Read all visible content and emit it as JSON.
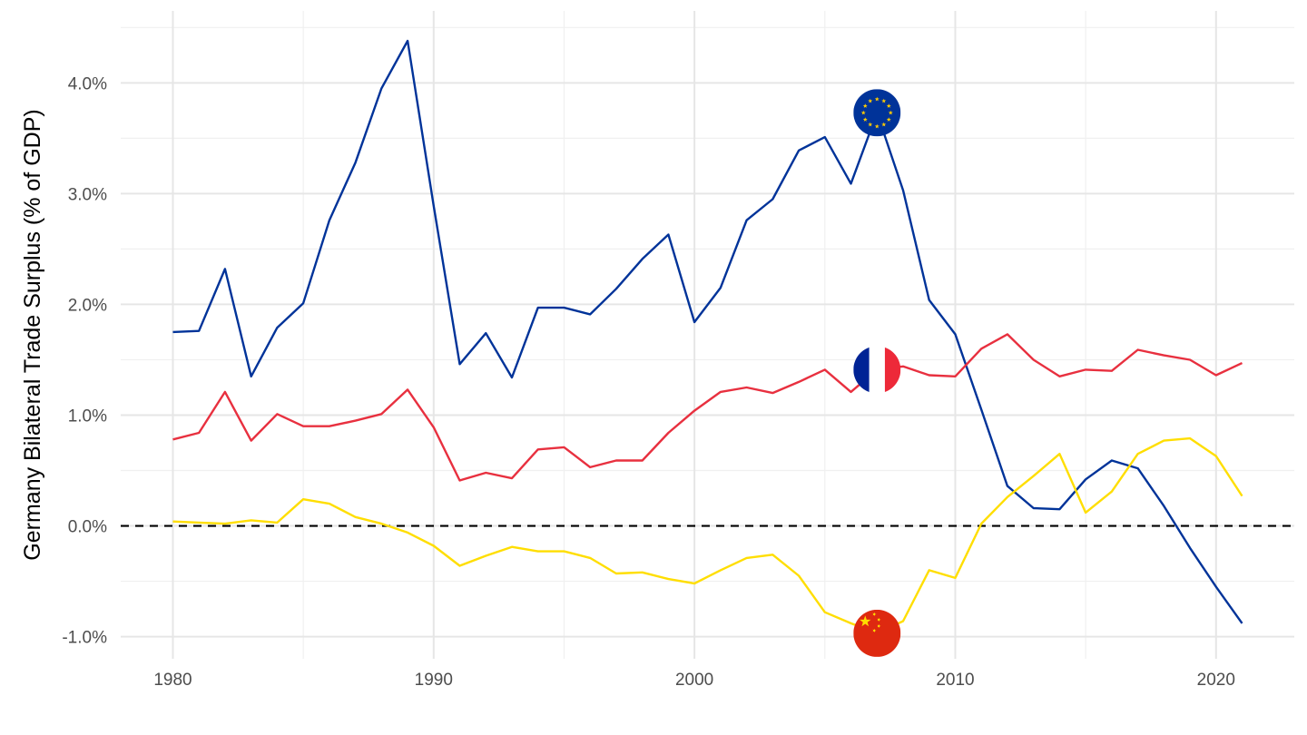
{
  "chart_data": {
    "type": "line",
    "title": "",
    "xlabel": "",
    "ylabel": "Germany Bilateral Trade Surplus (% of GDP)",
    "xlim": [
      1978,
      2023
    ],
    "ylim": [
      -1.2,
      4.65
    ],
    "x_ticks": [
      1980,
      1990,
      2000,
      2010,
      2020
    ],
    "x_tick_labels": [
      "1980",
      "1990",
      "2000",
      "2010",
      "2020"
    ],
    "y_ticks": [
      -1.0,
      0.0,
      1.0,
      2.0,
      3.0,
      4.0
    ],
    "y_tick_labels": [
      "-1.0%",
      "0.0%",
      "1.0%",
      "2.0%",
      "3.0%",
      "4.0%"
    ],
    "grid": true,
    "reference_line": {
      "y": 0,
      "style": "dashed",
      "color": "#000000"
    },
    "x": [
      1980,
      1981,
      1982,
      1983,
      1984,
      1985,
      1986,
      1987,
      1988,
      1989,
      1990,
      1991,
      1992,
      1993,
      1994,
      1995,
      1996,
      1997,
      1998,
      1999,
      2000,
      2001,
      2002,
      2003,
      2004,
      2005,
      2006,
      2007,
      2008,
      2009,
      2010,
      2011,
      2012,
      2013,
      2014,
      2015,
      2016,
      2017,
      2018,
      2019,
      2020,
      2021
    ],
    "series": [
      {
        "color": "#003399",
        "marker": "eu-flag-icon",
        "values": [
          1.75,
          1.76,
          2.32,
          1.35,
          1.79,
          2.01,
          2.76,
          3.28,
          3.95,
          4.38,
          2.89,
          1.46,
          1.74,
          1.34,
          1.97,
          1.97,
          1.91,
          2.14,
          2.41,
          2.63,
          1.84,
          2.15,
          2.76,
          2.95,
          3.39,
          3.51,
          3.09,
          3.73,
          3.03,
          2.04,
          1.73,
          1.05,
          0.36,
          0.16,
          0.15,
          0.42,
          0.59,
          0.52,
          0.18,
          -0.2,
          -0.55,
          -0.88
        ]
      },
      {
        "color": "#e8303f",
        "marker": "france-flag-icon",
        "values": [
          0.78,
          0.84,
          1.21,
          0.77,
          1.01,
          0.9,
          0.9,
          0.95,
          1.01,
          1.23,
          0.89,
          0.41,
          0.48,
          0.43,
          0.69,
          0.71,
          0.53,
          0.59,
          0.59,
          0.84,
          1.04,
          1.21,
          1.25,
          1.2,
          1.3,
          1.41,
          1.21,
          1.41,
          1.44,
          1.36,
          1.35,
          1.6,
          1.73,
          1.5,
          1.35,
          1.41,
          1.4,
          1.59,
          1.54,
          1.5,
          1.36,
          1.47
        ]
      },
      {
        "color": "#ffde00",
        "marker": "china-flag-icon",
        "values": [
          0.04,
          0.03,
          0.02,
          0.05,
          0.03,
          0.24,
          0.2,
          0.08,
          0.02,
          -0.06,
          -0.18,
          -0.36,
          -0.27,
          -0.19,
          -0.23,
          -0.23,
          -0.29,
          -0.43,
          -0.42,
          -0.48,
          -0.52,
          -0.4,
          -0.29,
          -0.26,
          -0.45,
          -0.78,
          -0.88,
          -0.97,
          -0.86,
          -0.4,
          -0.47,
          0.02,
          0.26,
          0.45,
          0.65,
          0.12,
          0.31,
          0.65,
          0.77,
          0.79,
          0.63,
          0.27
        ]
      }
    ],
    "flag_markers": [
      {
        "name": "eu-flag-icon",
        "x": 2007,
        "y": 3.73,
        "colors": {
          "background": "#003399",
          "stars": "#ffcc00"
        }
      },
      {
        "name": "france-flag-icon",
        "x": 2007,
        "y": 1.41,
        "colors": {
          "blue": "#002395",
          "white": "#ffffff",
          "red": "#ed2939"
        }
      },
      {
        "name": "china-flag-icon",
        "x": 2007,
        "y": -0.97,
        "colors": {
          "background": "#de2910",
          "stars": "#ffde00"
        }
      }
    ]
  }
}
